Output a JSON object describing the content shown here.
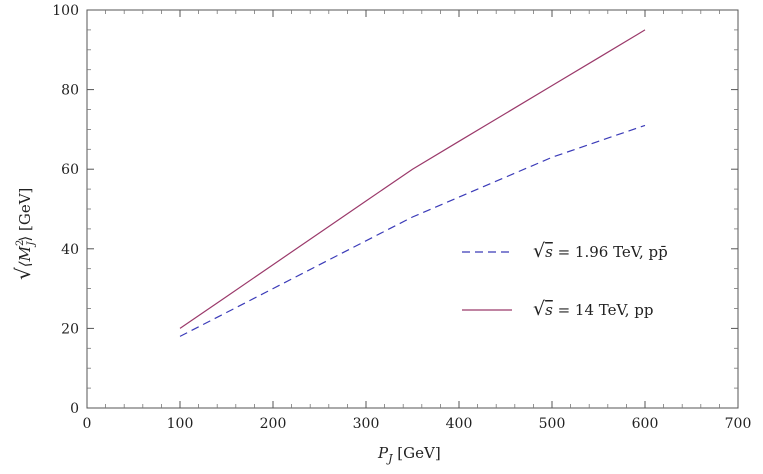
{
  "chart_data": {
    "type": "line",
    "xlabel": "P_J [GeV]",
    "xlabel_main": "P",
    "xlabel_sub": "J",
    "xlabel_unit": " [GeV]",
    "ylabel": "√⟨M_J²⟩ [GeV]",
    "ylabel_root": "√",
    "ylabel_inner": "⟨M",
    "ylabel_sup": "2",
    "ylabel_sub": "J",
    "ylabel_close": "⟩",
    "ylabel_unit": " [GeV]",
    "xlim": [
      0,
      700
    ],
    "ylim": [
      0,
      100
    ],
    "x_ticks": [
      "0",
      "100",
      "200",
      "300",
      "400",
      "500",
      "600",
      "700"
    ],
    "y_ticks": [
      "0",
      "20",
      "40",
      "60",
      "80",
      "100"
    ],
    "grid": false,
    "legend_position": "right-center",
    "series": [
      {
        "name": "√s = 1.96 TeV, pp̄",
        "legend_root": "√",
        "legend_s": "s",
        "legend_text": " = 1.96 TeV, pp̄",
        "style": "dashed",
        "color": "#3b3bb8",
        "x": [
          100,
          150,
          200,
          250,
          300,
          350,
          400,
          450,
          500,
          550,
          600
        ],
        "y": [
          18,
          24,
          30,
          36,
          42,
          48,
          53,
          58,
          63,
          67,
          71
        ]
      },
      {
        "name": "√s = 14 TeV, pp",
        "legend_root": "√",
        "legend_s": "s",
        "legend_text": " = 14 TeV, pp",
        "style": "solid",
        "color": "#9b3a6b",
        "x": [
          100,
          150,
          200,
          250,
          300,
          350,
          400,
          450,
          500,
          550,
          600
        ],
        "y": [
          20,
          28,
          36,
          44,
          52,
          60,
          67,
          74,
          81,
          88,
          95
        ]
      }
    ]
  }
}
